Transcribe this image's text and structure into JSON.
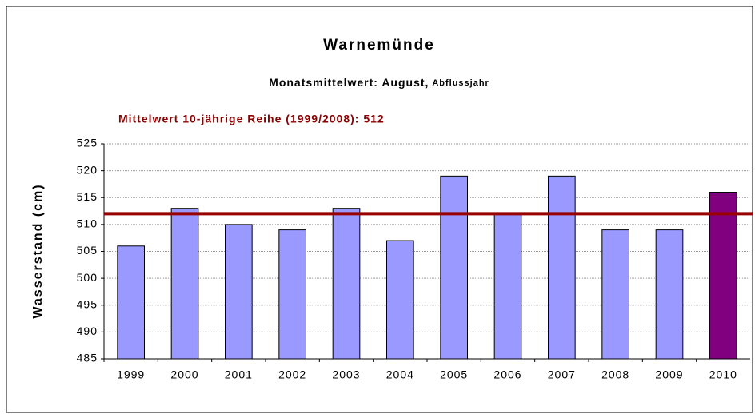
{
  "chart_data": {
    "type": "bar",
    "title": "Warnemünde",
    "subtitle": "Monatsmittelwert: August,",
    "subtitle_suffix": "Abflussjahr",
    "annotation": "Mittelwert 10-jährige Reihe (1999/2008): 512",
    "y_label": "Wasserstand (cm)",
    "categories": [
      "1999",
      "2000",
      "2001",
      "2002",
      "2003",
      "2004",
      "2005",
      "2006",
      "2007",
      "2008",
      "2009",
      "2010"
    ],
    "values": [
      506,
      513,
      510,
      509,
      513,
      507,
      519,
      512,
      519,
      509,
      509,
      516
    ],
    "colors": [
      "#9999ff",
      "#9999ff",
      "#9999ff",
      "#9999ff",
      "#9999ff",
      "#9999ff",
      "#9999ff",
      "#9999ff",
      "#9999ff",
      "#9999ff",
      "#9999ff",
      "#800080"
    ],
    "reference_line": {
      "value": 512,
      "color": "#990000"
    },
    "ylim": [
      485,
      525
    ],
    "yticks": [
      485,
      490,
      495,
      500,
      505,
      510,
      515,
      520,
      525
    ],
    "grid": true
  }
}
